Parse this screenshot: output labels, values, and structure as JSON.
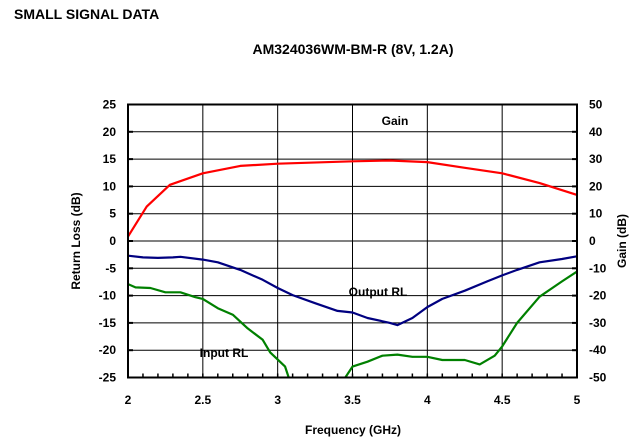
{
  "header": {
    "section_title": "SMALL SIGNAL DATA"
  },
  "chart_data": {
    "type": "line",
    "title": "AM324036WM-BM-R (8V, 1.2A)",
    "xlabel": "Frequency (GHz)",
    "ylabel": "Return Loss (dB)",
    "y2label": "Gain (dB)",
    "xlim": [
      2,
      5
    ],
    "ylim": [
      -25,
      25
    ],
    "y2lim": [
      -50,
      50
    ],
    "xticks": [
      "2",
      "2.5",
      "3",
      "3.5",
      "4",
      "4.5",
      "5"
    ],
    "yticks": [
      "25",
      "20",
      "15",
      "10",
      "5",
      "0",
      "-5",
      "-10",
      "-15",
      "-20",
      "-25"
    ],
    "y2ticks": [
      "50",
      "40",
      "30",
      "20",
      "10",
      "0",
      "-10",
      "-20",
      "-30",
      "-40",
      "-50"
    ],
    "grid": true,
    "annotations": {
      "gain": "Gain",
      "output_rl": "Output RL",
      "input_rl": "Input RL"
    },
    "series": [
      {
        "name": "Gain",
        "axis": "right",
        "color": "#ff0000",
        "x": [
          2.0,
          2.125,
          2.28,
          2.5,
          2.75,
          3.0,
          3.5,
          3.75,
          4.0,
          4.25,
          4.5,
          4.75,
          5.0
        ],
        "y": [
          1.6,
          12.6,
          20.6,
          24.8,
          27.5,
          28.3,
          29.2,
          29.5,
          28.9,
          26.8,
          24.8,
          21.2,
          16.9
        ]
      },
      {
        "name": "Output RL",
        "axis": "left",
        "color": "#000080",
        "x": [
          2.0,
          2.1,
          2.2,
          2.3,
          2.35,
          2.5,
          2.6,
          2.75,
          2.9,
          3.0,
          3.1,
          3.25,
          3.4,
          3.5,
          3.6,
          3.75,
          3.8,
          3.9,
          4.0,
          4.1,
          4.25,
          4.4,
          4.5,
          4.6,
          4.75,
          4.9,
          5.0
        ],
        "y": [
          -2.7,
          -3.0,
          -3.1,
          -3.0,
          -2.9,
          -3.4,
          -3.9,
          -5.3,
          -7.1,
          -8.6,
          -9.9,
          -11.4,
          -12.8,
          -13.1,
          -14.1,
          -15.0,
          -15.4,
          -14.1,
          -12.1,
          -10.6,
          -9.1,
          -7.4,
          -6.3,
          -5.3,
          -3.9,
          -3.3,
          -2.8
        ]
      },
      {
        "name": "Input RL",
        "axis": "left",
        "color": "#008000",
        "x": [
          2.0,
          2.05,
          2.15,
          2.25,
          2.35,
          2.45,
          2.5,
          2.6,
          2.7,
          2.8,
          2.9,
          2.95,
          3.05,
          3.08,
          3.44,
          3.5,
          3.6,
          3.7,
          3.8,
          3.9,
          4.0,
          4.1,
          4.25,
          4.35,
          4.45,
          4.5,
          4.6,
          4.75,
          4.9,
          5.0
        ],
        "y": [
          -7.9,
          -8.5,
          -8.6,
          -9.4,
          -9.4,
          -10.3,
          -10.6,
          -12.3,
          -13.5,
          -16.0,
          -18.1,
          -20.4,
          -23.0,
          -25.5,
          -25.5,
          -23.0,
          -22.1,
          -21.0,
          -20.8,
          -21.2,
          -21.2,
          -21.8,
          -21.8,
          -22.6,
          -21.0,
          -19.3,
          -15.0,
          -10.2,
          -7.4,
          -5.6
        ]
      }
    ]
  }
}
